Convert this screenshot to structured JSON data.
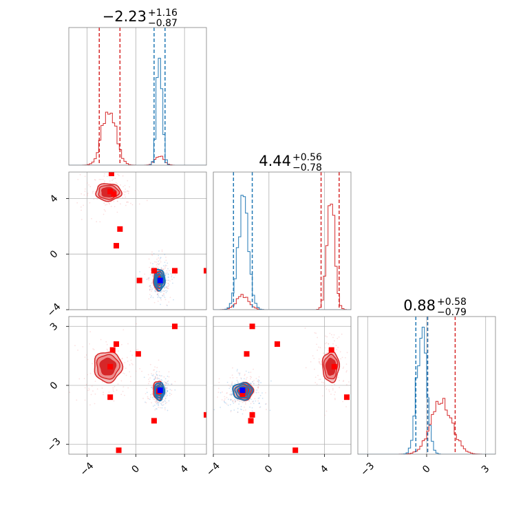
{
  "chart_data": {
    "type": "scatter",
    "layout": "corner",
    "colors": {
      "series_a": "#1f77b4",
      "series_b": "#d62728",
      "marker_red": "#ff0000",
      "marker_blue": "#0000ff",
      "grid": "#b0b0b0",
      "frame": "#808080"
    },
    "grid": true,
    "parameters": [
      {
        "title": {
          "median": "−2.23",
          "plus": "+1.16",
          "minus": "−0.87"
        },
        "range": [
          -5.5,
          5.8
        ],
        "ticks": [
          -4,
          0,
          4
        ],
        "tick_labels": [
          "−4",
          "0",
          "4"
        ]
      },
      {
        "title": {
          "median": "4.44",
          "plus": "+0.56",
          "minus": "−0.78"
        },
        "range": [
          -4,
          5.9
        ],
        "ticks": [
          -4,
          0,
          4
        ],
        "tick_labels": [
          "−4",
          "0",
          "4"
        ]
      },
      {
        "title": {
          "median": "0.88",
          "plus": "+0.58",
          "minus": "−0.79"
        },
        "range": [
          -3.5,
          3.5
        ],
        "ticks": [
          -3,
          0,
          3
        ],
        "tick_labels": [
          "−3",
          "0",
          "3"
        ]
      }
    ],
    "diagonals": [
      {
        "param": 0,
        "ymax": 1.0,
        "quantiles": {
          "series_a": [
            1.5,
            2.4
          ],
          "series_b": [
            -3.0,
            -1.3
          ]
        },
        "series_a": {
          "mean": 1.95,
          "sd": 0.22,
          "peak": 0.9
        },
        "series_b": {
          "mean": -2.2,
          "sd": 0.55,
          "peak": 0.43,
          "extra": [
            [
              1.95,
              0.35,
              0.07
            ]
          ]
        }
      },
      {
        "param": 1,
        "ymax": 1.0,
        "quantiles": {
          "series_a": [
            -2.55,
            -1.2
          ],
          "series_b": [
            3.75,
            5.05
          ]
        },
        "series_b": {
          "mean": 4.45,
          "sd": 0.28,
          "peak": 0.82,
          "extra": [
            [
              -1.9,
              0.45,
              0.1
            ]
          ]
        },
        "series_a": {
          "mean": -1.85,
          "sd": 0.38,
          "peak": 0.77
        }
      },
      {
        "param": 2,
        "ymax": 1.0,
        "quantiles": {
          "series_a": [
            -0.55,
            0.05
          ],
          "series_b": [
            0.05,
            1.45
          ]
        },
        "series_a": {
          "mean": -0.25,
          "sd": 0.25,
          "peak": 0.9
        },
        "series_b": {
          "mean": 0.75,
          "sd": 0.55,
          "peak": 0.38
        }
      }
    ],
    "scatter_panels": [
      {
        "x_param": 0,
        "y_param": 1,
        "clusters": [
          {
            "series": "series_b",
            "cx": -2.25,
            "cy": 4.45,
            "rx": 2.1,
            "ry": 1.25
          },
          {
            "series": "series_b",
            "cx": 1.9,
            "cy": -1.85,
            "rx": 0.9,
            "ry": 1.55
          },
          {
            "series": "series_a",
            "cx": 1.95,
            "cy": -1.85,
            "rx": 0.85,
            "ry": 1.5
          }
        ],
        "red_points": [
          [
            -2.0,
            5.8
          ],
          [
            -2.1,
            4.5
          ],
          [
            -1.8,
            4.3
          ],
          [
            -1.3,
            1.8
          ],
          [
            -1.6,
            0.6
          ],
          [
            0.3,
            -1.9
          ],
          [
            1.5,
            -1.2
          ],
          [
            3.2,
            -1.2
          ],
          [
            5.8,
            -1.2
          ]
        ],
        "blue_points": [
          [
            2.0,
            -1.9
          ]
        ]
      },
      {
        "x_param": 0,
        "y_param": 2,
        "clusters": [
          {
            "series": "series_b",
            "cx": -2.3,
            "cy": 0.95,
            "rx": 2.3,
            "ry": 1.55
          },
          {
            "series": "series_b",
            "cx": 1.85,
            "cy": -0.25,
            "rx": 0.85,
            "ry": 0.95
          },
          {
            "series": "series_a",
            "cx": 1.95,
            "cy": -0.3,
            "rx": 0.8,
            "ry": 0.9
          }
        ],
        "red_points": [
          [
            -1.6,
            2.1
          ],
          [
            -1.9,
            1.8
          ],
          [
            0.2,
            1.6
          ],
          [
            -2.1,
            0.95
          ],
          [
            -2.1,
            -0.6
          ],
          [
            3.2,
            3.0
          ],
          [
            1.5,
            -1.8
          ],
          [
            5.8,
            -1.5
          ],
          [
            -1.4,
            -3.3
          ],
          [
            1.9,
            -0.3
          ]
        ],
        "blue_points": [
          [
            2.0,
            -0.25
          ]
        ]
      },
      {
        "x_param": 1,
        "y_param": 2,
        "clusters": [
          {
            "series": "series_b",
            "cx": 4.45,
            "cy": 0.95,
            "rx": 1.2,
            "ry": 1.55
          },
          {
            "series": "series_b",
            "cx": -1.85,
            "cy": -0.3,
            "rx": 1.45,
            "ry": 0.9
          },
          {
            "series": "series_a",
            "cx": -1.9,
            "cy": -0.3,
            "rx": 1.4,
            "ry": 0.85
          }
        ],
        "red_points": [
          [
            -1.2,
            3.0
          ],
          [
            0.6,
            2.1
          ],
          [
            -1.6,
            1.6
          ],
          [
            4.5,
            1.8
          ],
          [
            4.7,
            0.95
          ],
          [
            5.6,
            -0.6
          ],
          [
            -1.2,
            -1.5
          ],
          [
            -1.3,
            -1.8
          ],
          [
            1.9,
            -3.3
          ],
          [
            -1.9,
            -0.45
          ]
        ],
        "blue_points": [
          [
            -1.9,
            -0.25
          ]
        ]
      }
    ]
  }
}
